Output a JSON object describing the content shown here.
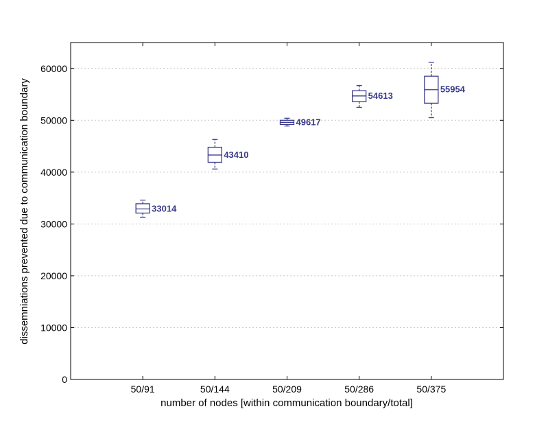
{
  "chart_data": {
    "type": "boxplot",
    "xlabel": "number of nodes [within communication boundary/total]",
    "ylabel": "dissemniations prevented due to communication boundary",
    "ylim": [
      0,
      65000
    ],
    "yticks": [
      0,
      10000,
      20000,
      30000,
      40000,
      50000,
      60000
    ],
    "ytick_labels": [
      "0",
      "10000",
      "20000",
      "30000",
      "40000",
      "50000",
      "60000"
    ],
    "grid": "horizontal dotted",
    "box_color": "#3a3a8c",
    "categories": [
      "50/91",
      "50/144",
      "50/209",
      "50/286",
      "50/375"
    ],
    "boxes": [
      {
        "whisker_low": 31300,
        "q1": 32100,
        "median": 32900,
        "q3": 33900,
        "whisker_high": 34600,
        "label": "33014"
      },
      {
        "whisker_low": 40600,
        "q1": 41900,
        "median": 43300,
        "q3": 44800,
        "whisker_high": 46300,
        "label": "43410"
      },
      {
        "whisker_low": 48900,
        "q1": 49200,
        "median": 49600,
        "q3": 50000,
        "whisker_high": 50400,
        "label": "49617"
      },
      {
        "whisker_low": 52500,
        "q1": 53600,
        "median": 54700,
        "q3": 55700,
        "whisker_high": 56700,
        "label": "54613"
      },
      {
        "whisker_low": 50500,
        "q1": 53300,
        "median": 55900,
        "q3": 58500,
        "whisker_high": 61200,
        "label": "55954"
      }
    ]
  }
}
